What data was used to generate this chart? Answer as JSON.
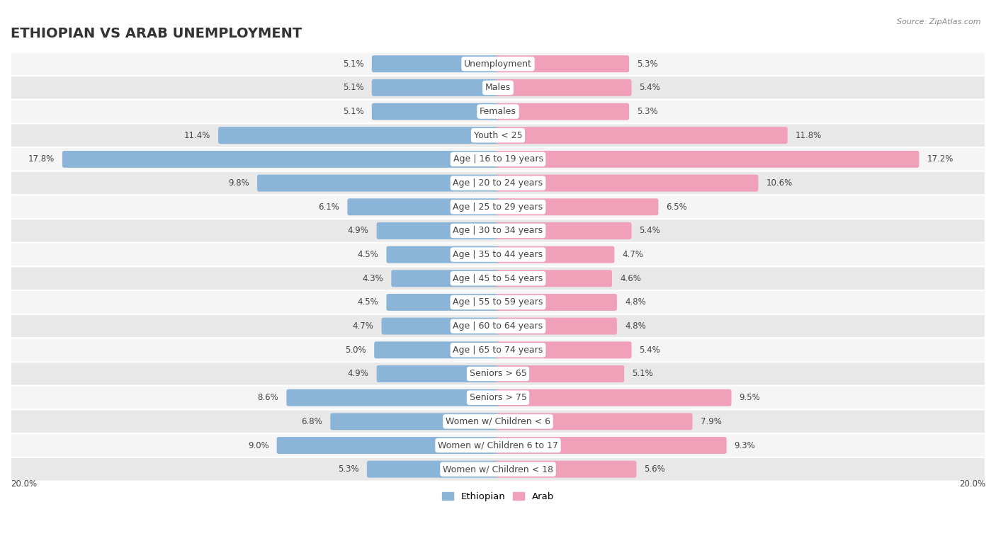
{
  "title": "ETHIOPIAN VS ARAB UNEMPLOYMENT",
  "source": "Source: ZipAtlas.com",
  "categories": [
    "Unemployment",
    "Males",
    "Females",
    "Youth < 25",
    "Age | 16 to 19 years",
    "Age | 20 to 24 years",
    "Age | 25 to 29 years",
    "Age | 30 to 34 years",
    "Age | 35 to 44 years",
    "Age | 45 to 54 years",
    "Age | 55 to 59 years",
    "Age | 60 to 64 years",
    "Age | 65 to 74 years",
    "Seniors > 65",
    "Seniors > 75",
    "Women w/ Children < 6",
    "Women w/ Children 6 to 17",
    "Women w/ Children < 18"
  ],
  "ethiopian": [
    5.1,
    5.1,
    5.1,
    11.4,
    17.8,
    9.8,
    6.1,
    4.9,
    4.5,
    4.3,
    4.5,
    4.7,
    5.0,
    4.9,
    8.6,
    6.8,
    9.0,
    5.3
  ],
  "arab": [
    5.3,
    5.4,
    5.3,
    11.8,
    17.2,
    10.6,
    6.5,
    5.4,
    4.7,
    4.6,
    4.8,
    4.8,
    5.4,
    5.1,
    9.5,
    7.9,
    9.3,
    5.6
  ],
  "ethiopian_color": "#8ab4d8",
  "arab_color": "#f0a0b8",
  "bar_height": 0.55,
  "xlim": 20.0,
  "background_color": "#ffffff",
  "row_bg_odd": "#f5f5f5",
  "row_bg_even": "#e8e8e8",
  "title_fontsize": 14,
  "label_fontsize": 9,
  "value_fontsize": 8.5,
  "title_color": "#333333",
  "source_color": "#888888",
  "text_color": "#444444"
}
